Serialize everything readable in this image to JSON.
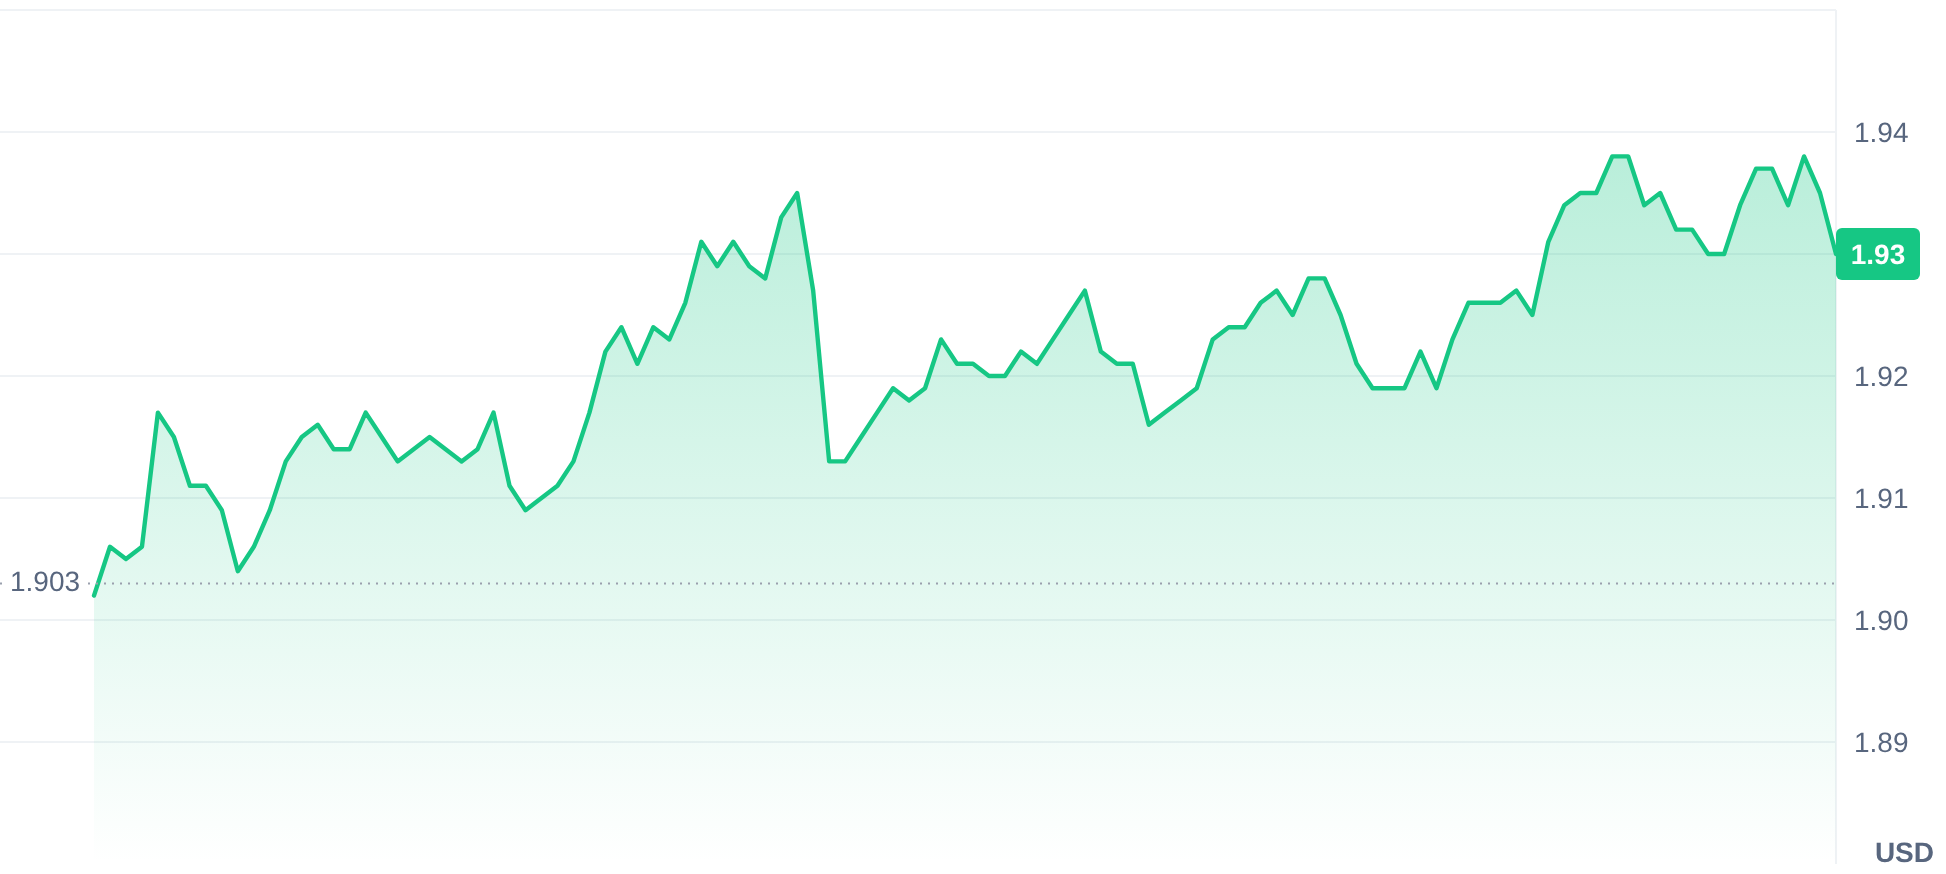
{
  "chart_data": {
    "type": "area",
    "ylabel": "USD",
    "categories": [
      null,
      null,
      null,
      null,
      null,
      null,
      null,
      null,
      null,
      null,
      null,
      null,
      null,
      null,
      null,
      null,
      null,
      null,
      null,
      null,
      null,
      null,
      null,
      null,
      null,
      null,
      null,
      null,
      null,
      null,
      null,
      null,
      null,
      null,
      null,
      null,
      null,
      null,
      null,
      null,
      null,
      null,
      null,
      null,
      null,
      null,
      null,
      null,
      null,
      null,
      null,
      null,
      null,
      null,
      null,
      null,
      null,
      null,
      null,
      null,
      null,
      null,
      null,
      null,
      null,
      null,
      null,
      null,
      null,
      null,
      null,
      null,
      null,
      null,
      null,
      null,
      null,
      null,
      null,
      null,
      null,
      null,
      null,
      null,
      null,
      null,
      null,
      null,
      null,
      null,
      null,
      null,
      null,
      null,
      null,
      null,
      null,
      null,
      null,
      null,
      null,
      null,
      null,
      null,
      null,
      null,
      null,
      null,
      null,
      null
    ],
    "series": [
      {
        "color": "#16c784",
        "values": [
          1.902,
          1.906,
          1.905,
          1.906,
          1.917,
          1.915,
          1.911,
          1.911,
          1.909,
          1.904,
          1.906,
          1.909,
          1.913,
          1.915,
          1.916,
          1.914,
          1.914,
          1.917,
          1.915,
          1.913,
          1.914,
          1.915,
          1.914,
          1.913,
          1.914,
          1.917,
          1.911,
          1.909,
          1.91,
          1.911,
          1.913,
          1.917,
          1.922,
          1.924,
          1.921,
          1.924,
          1.923,
          1.926,
          1.931,
          1.929,
          1.931,
          1.929,
          1.928,
          1.933,
          1.935,
          1.927,
          1.913,
          1.913,
          1.915,
          1.917,
          1.919,
          1.918,
          1.919,
          1.923,
          1.921,
          1.921,
          1.92,
          1.92,
          1.922,
          1.921,
          1.923,
          1.925,
          1.927,
          1.922,
          1.921,
          1.921,
          1.916,
          1.917,
          1.918,
          1.919,
          1.923,
          1.924,
          1.924,
          1.926,
          1.927,
          1.925,
          1.928,
          1.928,
          1.925,
          1.921,
          1.919,
          1.919,
          1.919,
          1.922,
          1.919,
          1.923,
          1.926,
          1.926,
          1.926,
          1.927,
          1.925,
          1.931,
          1.934,
          1.935,
          1.935,
          1.938,
          1.938,
          1.934,
          1.935,
          1.932,
          1.932,
          1.93,
          1.93,
          1.934,
          1.937,
          1.937,
          1.934,
          1.938,
          1.935,
          1.93
        ]
      }
    ],
    "ylim": [
      1.88,
      1.95
    ],
    "yticks": [
      {
        "value": 1.89,
        "label": "1.89"
      },
      {
        "value": 1.9,
        "label": "1.90"
      },
      {
        "value": 1.91,
        "label": "1.91"
      },
      {
        "value": 1.92,
        "label": "1.92"
      },
      {
        "value": 1.93,
        "label": null
      },
      {
        "value": 1.94,
        "label": "1.94"
      }
    ],
    "grid": "y",
    "tick_labels": "y",
    "ref_lines": [
      {
        "axis": "y",
        "value": 1.903,
        "label": "1.903",
        "color": "#9aa0ad",
        "line_style": "dotted"
      }
    ],
    "annotations": [
      "1.93"
    ]
  }
}
